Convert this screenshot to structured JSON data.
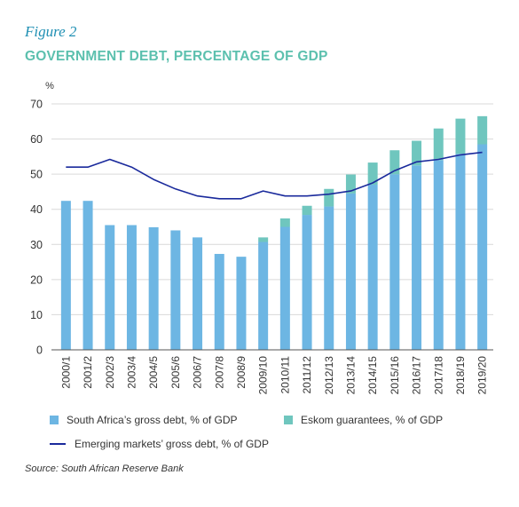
{
  "figure_label": "Figure 2",
  "title": "GOVERNMENT DEBT, PERCENTAGE OF GDP",
  "source": "Source: South African Reserve Bank",
  "colors": {
    "sa_debt": "#6db6e3",
    "eskom": "#6fc6be",
    "em_debt": "#1a2a9c",
    "title": "#5cc0ae",
    "figure_label": "#1f8fb3",
    "grid": "#d9d9d9"
  },
  "chart_data": {
    "type": "bar",
    "ylabel": "%",
    "ylim": [
      0,
      70
    ],
    "yticks": [
      0,
      10,
      20,
      30,
      40,
      50,
      60,
      70
    ],
    "grid": true,
    "legend_position": "bottom",
    "categories": [
      "2000/1",
      "2001/2",
      "2002/3",
      "2003/4",
      "2004/5",
      "2005/6",
      "2006/7",
      "2007/8",
      "2008/9",
      "2009/10",
      "2010/11",
      "2011/12",
      "2012/13",
      "2013/14",
      "2014/15",
      "2015/16",
      "2016/17",
      "2017/18",
      "2018/19",
      "2019/20"
    ],
    "series": [
      {
        "name": "South Africa’s gross debt, % of GDP",
        "type": "bar",
        "stack": "debt",
        "values": [
          42.4,
          42.4,
          35.5,
          35.5,
          34.9,
          34.0,
          32.0,
          27.3,
          26.5,
          30.7,
          35.0,
          38.4,
          40.8,
          44.5,
          47.0,
          50.0,
          52.5,
          54.0,
          55.8,
          58.5
        ]
      },
      {
        "name": "Eskom guarantees, % of GDP",
        "type": "bar",
        "stack": "debt",
        "values": [
          0,
          0,
          0,
          0,
          0,
          0,
          0,
          0,
          0,
          1.3,
          2.4,
          2.6,
          5.0,
          5.4,
          6.3,
          6.8,
          7.0,
          9.0,
          10.0,
          8.0
        ]
      },
      {
        "name": "Emerging markets’ gross debt, % of GDP",
        "type": "line",
        "values": [
          52.0,
          52.0,
          54.2,
          52.0,
          48.5,
          45.8,
          43.8,
          43.0,
          43.0,
          45.2,
          43.8,
          43.8,
          44.3,
          45.2,
          47.5,
          51.0,
          53.5,
          54.2,
          55.5,
          56.2
        ]
      }
    ]
  }
}
